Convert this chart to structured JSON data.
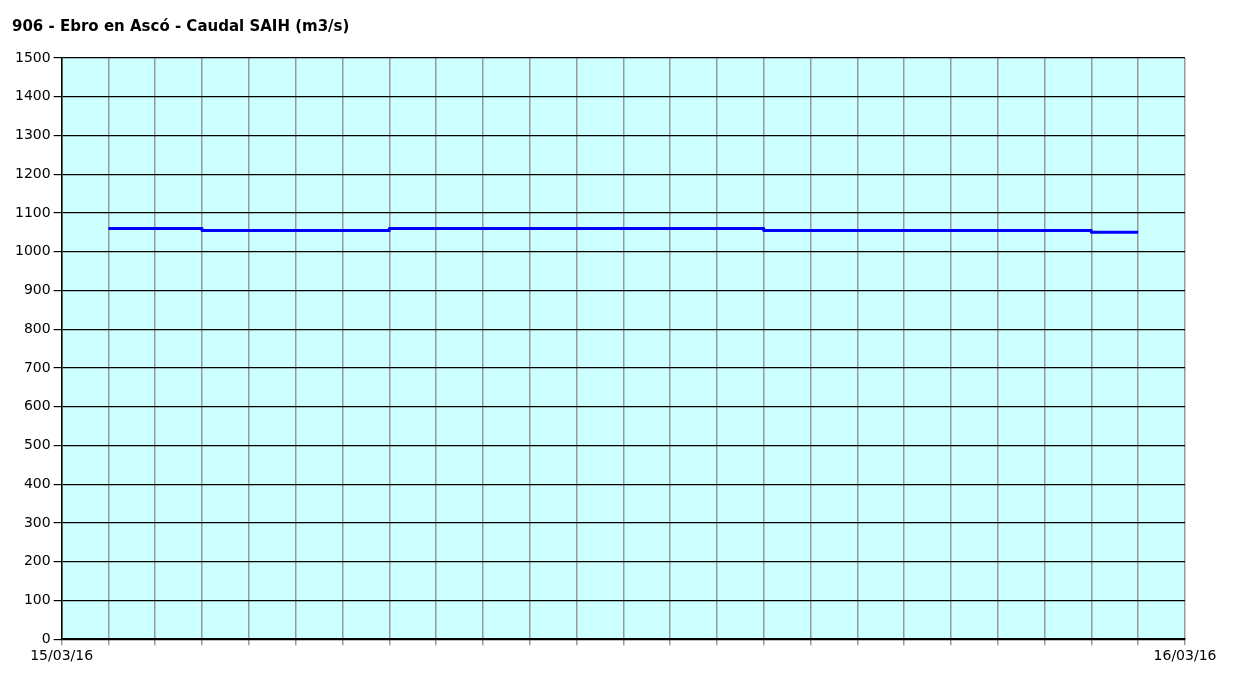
{
  "chart_data": {
    "type": "step",
    "title": "906 - Ebro en Ascó - Caudal SAIH (m3/s)",
    "x": [
      "--03-15T01:00",
      "--03-15T03:00",
      "--03-15T07:00",
      "--03-15T15:00",
      "--03-15T22:00",
      "--03-15T23:00"
    ],
    "series": [
      {
        "color": "#0000ff",
        "values": [
          1060,
          1055,
          1060,
          1055,
          1050,
          1050
        ]
      }
    ],
    "xlim": [
      "--03-15T00:00",
      "--03-16T00:00"
    ],
    "xticks": [
      {
        "value": "--03-15T00:00",
        "label": "15/03/16"
      },
      {
        "value": "--03-15T01:00",
        "label": null
      },
      {
        "value": "--03-15T02:00",
        "label": null
      },
      {
        "value": "--03-15T03:00",
        "label": null
      },
      {
        "value": "--03-15T04:00",
        "label": null
      },
      {
        "value": "--03-15T05:00",
        "label": null
      },
      {
        "value": "--03-15T06:00",
        "label": null
      },
      {
        "value": "--03-15T07:00",
        "label": null
      },
      {
        "value": "--03-15T08:00",
        "label": null
      },
      {
        "value": "--03-15T09:00",
        "label": null
      },
      {
        "value": "--03-15T10:00",
        "label": null
      },
      {
        "value": "--03-15T11:00",
        "label": null
      },
      {
        "value": "--03-15T12:00",
        "label": null
      },
      {
        "value": "--03-15T13:00",
        "label": null
      },
      {
        "value": "--03-15T14:00",
        "label": null
      },
      {
        "value": "--03-15T15:00",
        "label": null
      },
      {
        "value": "--03-15T16:00",
        "label": null
      },
      {
        "value": "--03-15T17:00",
        "label": null
      },
      {
        "value": "--03-15T18:00",
        "label": null
      },
      {
        "value": "--03-15T19:00",
        "label": null
      },
      {
        "value": "--03-15T20:00",
        "label": null
      },
      {
        "value": "--03-15T21:00",
        "label": null
      },
      {
        "value": "--03-15T22:00",
        "label": null
      },
      {
        "value": "--03-15T23:00",
        "label": null
      },
      {
        "value": "--03-16T00:00",
        "label": "16/03/16"
      }
    ],
    "ylim": [
      0,
      1500
    ],
    "yticks": [
      0,
      100,
      200,
      300,
      400,
      500,
      600,
      700,
      800,
      900,
      1000,
      1100,
      1200,
      1300,
      1400,
      1500
    ],
    "grid": true,
    "legend": false,
    "marker": "none",
    "line_style": "solid"
  }
}
